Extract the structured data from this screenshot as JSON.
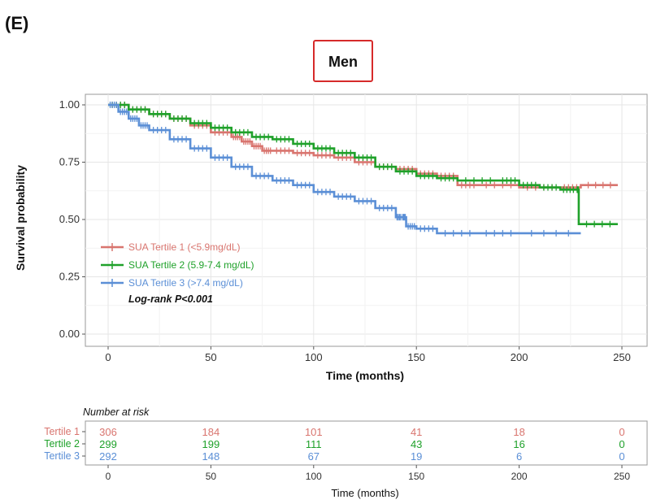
{
  "panel_label": "(E)",
  "colors": {
    "tertile1": "#d9756f",
    "tertile2": "#1fa12a",
    "tertile3": "#5b8fd6",
    "title_box": "#d62a2a"
  },
  "chart_data": {
    "type": "line",
    "title": "Men",
    "xlabel": "Time (months)",
    "ylabel": "Survival probability",
    "xlim": [
      0,
      250
    ],
    "ylim": [
      0,
      1
    ],
    "x_ticks": [
      0,
      50,
      100,
      150,
      200,
      250
    ],
    "y_ticks": [
      "0.00",
      "0.25",
      "0.50",
      "0.75",
      "1.00"
    ],
    "grid": true,
    "legend_position": "bottom-left",
    "annotation": "Log-rank P<0.001",
    "series": [
      {
        "name": "SUA Tertile 1 (<5.9mg/dL)",
        "color": "#d9756f",
        "x": [
          0,
          10,
          20,
          30,
          40,
          50,
          60,
          65,
          70,
          75,
          80,
          90,
          100,
          110,
          120,
          130,
          140,
          150,
          160,
          170,
          180,
          200,
          220,
          230,
          248
        ],
        "y": [
          1.0,
          0.98,
          0.96,
          0.94,
          0.91,
          0.88,
          0.86,
          0.84,
          0.82,
          0.8,
          0.8,
          0.79,
          0.78,
          0.77,
          0.75,
          0.73,
          0.72,
          0.7,
          0.69,
          0.65,
          0.65,
          0.64,
          0.64,
          0.65,
          0.65
        ]
      },
      {
        "name": "SUA Tertile 2 (5.9-7.4 mg/dL)",
        "color": "#1fa12a",
        "x": [
          0,
          10,
          20,
          30,
          40,
          50,
          60,
          70,
          80,
          90,
          100,
          110,
          120,
          130,
          140,
          150,
          160,
          170,
          190,
          200,
          210,
          220,
          228,
          229,
          248
        ],
        "y": [
          1.0,
          0.98,
          0.96,
          0.94,
          0.92,
          0.9,
          0.88,
          0.86,
          0.85,
          0.83,
          0.81,
          0.79,
          0.77,
          0.73,
          0.71,
          0.69,
          0.68,
          0.67,
          0.67,
          0.65,
          0.64,
          0.63,
          0.63,
          0.48,
          0.48
        ]
      },
      {
        "name": "SUA Tertile 3 (>7.4 mg/dL)",
        "color": "#5b8fd6",
        "x": [
          0,
          5,
          10,
          15,
          20,
          30,
          40,
          50,
          60,
          70,
          80,
          90,
          100,
          110,
          120,
          130,
          140,
          143,
          145,
          150,
          160,
          180,
          200,
          230
        ],
        "y": [
          1.0,
          0.97,
          0.94,
          0.91,
          0.89,
          0.85,
          0.81,
          0.77,
          0.73,
          0.69,
          0.67,
          0.65,
          0.62,
          0.6,
          0.58,
          0.55,
          0.51,
          0.51,
          0.47,
          0.46,
          0.44,
          0.44,
          0.44,
          0.44
        ]
      }
    ],
    "risk_table": {
      "title": "Number at risk",
      "xlabel": "Time (months)",
      "times": [
        0,
        50,
        100,
        150,
        200,
        250
      ],
      "rows": [
        {
          "label": "Tertile 1",
          "color": "#d9756f",
          "values": [
            "306",
            "184",
            "101",
            "41",
            "18",
            "0"
          ]
        },
        {
          "label": "Tertile 2",
          "color": "#1fa12a",
          "values": [
            "299",
            "199",
            "111",
            "43",
            "16",
            "0"
          ]
        },
        {
          "label": "Tertile 3",
          "color": "#5b8fd6",
          "values": [
            "292",
            "148",
            "67",
            "19",
            "6",
            "0"
          ]
        }
      ]
    }
  }
}
